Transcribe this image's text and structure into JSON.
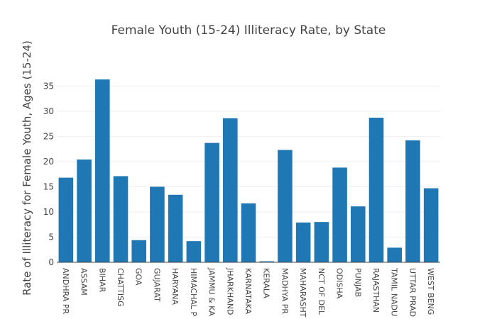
{
  "chart_data": {
    "type": "bar",
    "title": "Female Youth (15-24) Illiteracy Rate, by State",
    "xlabel": "",
    "ylabel": "Rate of Illiteracy for Female Youth, Ages (15-24)",
    "ylim": [
      0,
      38
    ],
    "yticks": [
      0,
      5,
      10,
      15,
      20,
      25,
      30,
      35
    ],
    "grid": true,
    "bar_color": "#1f77b4",
    "categories": [
      "ANDHRA PRADESH",
      "ASSAM",
      "BIHAR",
      "CHATTISGARH",
      "GOA",
      "GUJARAT",
      "HARYANA",
      "HIMACHAL PRADESH",
      "JAMMU & KASHMIR",
      "JHARKHAND",
      "KARNATAKA",
      "KERALA",
      "MADHYA PRADESH",
      "MAHARASHTRA",
      "NCT OF DELHI",
      "ODISHA",
      "PUNJAB",
      "RAJASTHAN",
      "TAMIL NADU",
      "UTTAR PRADESH",
      "WEST BENGAL"
    ],
    "tick_labels": [
      "ANDHRA PR",
      "ASSAM",
      "BIHAR",
      "CHATTISG",
      "GOA",
      "GUJARAT",
      "HARYANA",
      "HIMACHAL P",
      "JAMMU & KA",
      "JHARKHAND",
      "KARNATAKA",
      "KERALA",
      "MADHYA PR",
      "MAHARASHT",
      "NCT OF DEL",
      "ODISHA",
      "PUNJAB",
      "RAJASTHAN",
      "TAMIL NADU",
      "UTTAR PRAD",
      "WEST BENG"
    ],
    "values": [
      16.8,
      20.4,
      36.3,
      17.1,
      4.4,
      15.0,
      13.4,
      4.2,
      23.7,
      28.6,
      11.7,
      0.2,
      22.3,
      7.9,
      8.0,
      18.8,
      11.1,
      28.7,
      2.9,
      24.2,
      14.7
    ]
  }
}
